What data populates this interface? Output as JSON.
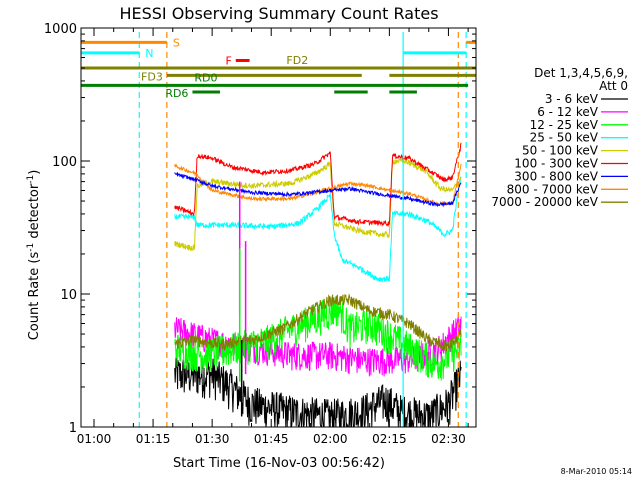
{
  "chart_data": {
    "type": "line",
    "title": "HESSI Observing Summary Count Rates",
    "xlabel": "Start Time (16-Nov-03 00:56:42)",
    "ylabel_main": "Count Rate (s",
    "ylabel_sup1": "-1",
    "ylabel_mid": " detector",
    "ylabel_sup2": "-1",
    "ylabel_end": ")",
    "x_ticks": [
      "01:00",
      "01:15",
      "01:30",
      "01:45",
      "02:00",
      "02:15",
      "02:30"
    ],
    "x_tick_minutes": [
      60,
      75,
      90,
      105,
      120,
      135,
      150
    ],
    "x_range_minutes": [
      56.7,
      157.0
    ],
    "y_scale": "log",
    "y_range": [
      1,
      1000
    ],
    "y_ticks": [
      "1",
      "10",
      "100",
      "1000"
    ],
    "y_tick_values": [
      1,
      10,
      100,
      1000
    ],
    "legend_header": [
      "Det 1,3,4,5,6,9,",
      "Att 0"
    ],
    "legend": [
      {
        "label": "3 - 6 keV",
        "color": "#000000"
      },
      {
        "label": "6 - 12 keV",
        "color": "#ff00ff"
      },
      {
        "label": "12 - 25 keV",
        "color": "#00ff00"
      },
      {
        "label": "25 - 50 keV",
        "color": "#00ffff"
      },
      {
        "label": "50 - 100 keV",
        "color": "#cccc00"
      },
      {
        "label": "100 - 300 keV",
        "color": "#ff0000"
      },
      {
        "label": "300 - 800 keV",
        "color": "#0000ff"
      },
      {
        "label": "800 - 7000 keV",
        "color": "#ff8800"
      },
      {
        "label": "7000 - 20000 keV",
        "color": "#808000"
      }
    ],
    "flags": [
      {
        "label": "S",
        "color": "#ff8800",
        "y": 780,
        "segments": [
          [
            56.7,
            78.5
          ],
          [
            154.5,
            157.0
          ]
        ]
      },
      {
        "label": "N",
        "color": "#00ffff",
        "y": 650,
        "segments": [
          [
            56.7,
            71.5
          ],
          [
            138.5,
            154.5
          ]
        ]
      },
      {
        "label": "F",
        "color": "#ff0000",
        "y": 570,
        "segments": [
          [
            96.0,
            99.5
          ]
        ]
      },
      {
        "label": "FD2",
        "color": "#808000",
        "y": 500,
        "segments": [
          [
            56.7,
            157.0
          ]
        ]
      },
      {
        "label": "FD3",
        "color": "#808000",
        "y": 440,
        "segments": [
          [
            78.5,
            128.0
          ],
          [
            135.0,
            157.0
          ]
        ]
      },
      {
        "label": "RD0",
        "color": "#007f00",
        "y": 370,
        "segments": [
          [
            56.7,
            155.0
          ]
        ]
      },
      {
        "label": "RD6",
        "color": "#007f00",
        "y": 330,
        "segments": [
          [
            85.0,
            92.0
          ],
          [
            121.0,
            129.5
          ],
          [
            135.0,
            142.0
          ]
        ]
      }
    ],
    "vlines": [
      {
        "x": 71.5,
        "color": "#00ffff",
        "style": "dashed"
      },
      {
        "x": 78.5,
        "color": "#ff8800",
        "style": "dashed"
      },
      {
        "x": 138.5,
        "color": "#00ffff",
        "style": "solid"
      },
      {
        "x": 152.5,
        "color": "#ff8800",
        "style": "dashed"
      },
      {
        "x": 154.5,
        "color": "#00ffff",
        "style": "dashed"
      }
    ],
    "data_start": 80.5,
    "data_end": 153.3,
    "series": [
      {
        "name": "3 - 6 keV",
        "color": "#000000",
        "noise": 0.35,
        "points": [
          [
            80.5,
            2.5
          ],
          [
            90,
            2.5
          ],
          [
            95,
            2.0
          ],
          [
            100,
            1.5
          ],
          [
            110,
            1.3
          ],
          [
            120,
            1.2
          ],
          [
            128,
            1.3
          ],
          [
            134,
            1.6
          ],
          [
            138,
            1.3
          ],
          [
            145,
            1.2
          ],
          [
            150,
            1.5
          ],
          [
            153.3,
            2.5
          ]
        ]
      },
      {
        "name": "6 - 12 keV",
        "color": "#ff00ff",
        "noise": 0.25,
        "points": [
          [
            80.5,
            5.5
          ],
          [
            90,
            4.5
          ],
          [
            100,
            4.0
          ],
          [
            110,
            3.5
          ],
          [
            120,
            3.5
          ],
          [
            128,
            3.2
          ],
          [
            135,
            3.2
          ],
          [
            142,
            3.3
          ],
          [
            148,
            4.0
          ],
          [
            153.3,
            6.0
          ]
        ]
      },
      {
        "name": "12 - 25 keV",
        "color": "#00ff00",
        "noise": 0.3,
        "points": [
          [
            80.5,
            4.0
          ],
          [
            88,
            3.5
          ],
          [
            96,
            4.0
          ],
          [
            104,
            4.5
          ],
          [
            110,
            5.5
          ],
          [
            118,
            7.0
          ],
          [
            122,
            8.0
          ],
          [
            125,
            5.5
          ],
          [
            130,
            6.0
          ],
          [
            135,
            5.0
          ],
          [
            140,
            4.0
          ],
          [
            147,
            3.0
          ],
          [
            153.3,
            4.0
          ]
        ]
      },
      {
        "name": "25 - 50 keV",
        "color": "#00ffff",
        "noise": 0.05,
        "points": [
          [
            80.5,
            38
          ],
          [
            85.5,
            38
          ],
          [
            86.2,
            33
          ],
          [
            95,
            33
          ],
          [
            105,
            32
          ],
          [
            112,
            34
          ],
          [
            116,
            42
          ],
          [
            120,
            55
          ],
          [
            121,
            28
          ],
          [
            123,
            18
          ],
          [
            127,
            16
          ],
          [
            132,
            13
          ],
          [
            135,
            13
          ],
          [
            135.8,
            40
          ],
          [
            140,
            40
          ],
          [
            145,
            35
          ],
          [
            149,
            28
          ],
          [
            151,
            30
          ],
          [
            152.5,
            60
          ],
          [
            153.3,
            80
          ]
        ]
      },
      {
        "name": "50 - 100 keV",
        "color": "#cccc00",
        "noise": 0.05,
        "points": [
          [
            80.5,
            24
          ],
          [
            85.5,
            22
          ],
          [
            86.2,
            65
          ],
          [
            90,
            70
          ],
          [
            100,
            65
          ],
          [
            110,
            68
          ],
          [
            116,
            80
          ],
          [
            120,
            95
          ],
          [
            121,
            34
          ],
          [
            127,
            30
          ],
          [
            133,
            28
          ],
          [
            135,
            28
          ],
          [
            135.8,
            100
          ],
          [
            139,
            100
          ],
          [
            144,
            85
          ],
          [
            148,
            62
          ],
          [
            151,
            60
          ],
          [
            153.3,
            75
          ]
        ]
      },
      {
        "name": "100 - 300 keV",
        "color": "#ff0000",
        "noise": 0.04,
        "points": [
          [
            80.5,
            45
          ],
          [
            85.5,
            40
          ],
          [
            86.2,
            110
          ],
          [
            90,
            105
          ],
          [
            95,
            90
          ],
          [
            103,
            82
          ],
          [
            110,
            85
          ],
          [
            116,
            95
          ],
          [
            120,
            115
          ],
          [
            121,
            38
          ],
          [
            127,
            35
          ],
          [
            135,
            34
          ],
          [
            135.8,
            110
          ],
          [
            140,
            105
          ],
          [
            145,
            85
          ],
          [
            149,
            72
          ],
          [
            151,
            75
          ],
          [
            153.3,
            135
          ]
        ]
      },
      {
        "name": "300 - 800 keV",
        "color": "#0000ff",
        "noise": 0.03,
        "points": [
          [
            80.5,
            80
          ],
          [
            86,
            72
          ],
          [
            90,
            65
          ],
          [
            100,
            58
          ],
          [
            110,
            56
          ],
          [
            120,
            60
          ],
          [
            125,
            62
          ],
          [
            130,
            58
          ],
          [
            135,
            55
          ],
          [
            140,
            52
          ],
          [
            147,
            47
          ],
          [
            151,
            48
          ],
          [
            153.3,
            70
          ]
        ]
      },
      {
        "name": "800 - 7000 keV",
        "color": "#ff8800",
        "noise": 0.03,
        "points": [
          [
            80.5,
            92
          ],
          [
            86,
            80
          ],
          [
            90,
            60
          ],
          [
            100,
            52
          ],
          [
            110,
            52
          ],
          [
            120,
            62
          ],
          [
            125,
            68
          ],
          [
            130,
            65
          ],
          [
            135,
            60
          ],
          [
            140,
            57
          ],
          [
            147,
            48
          ],
          [
            151,
            48
          ],
          [
            153.3,
            95
          ]
        ]
      },
      {
        "name": "7000 - 20000 keV",
        "color": "#808000",
        "noise": 0.1,
        "points": [
          [
            80.5,
            4.2
          ],
          [
            85,
            4.5
          ],
          [
            92,
            4.2
          ],
          [
            100,
            4.5
          ],
          [
            108,
            5.5
          ],
          [
            115,
            7.5
          ],
          [
            120,
            9.0
          ],
          [
            125,
            9.0
          ],
          [
            130,
            7.5
          ],
          [
            135,
            7.0
          ],
          [
            140,
            6.0
          ],
          [
            145,
            4.5
          ],
          [
            150,
            4.0
          ],
          [
            153.3,
            5.0
          ]
        ]
      }
    ],
    "spikes": [
      {
        "series": 1,
        "x": 97.0,
        "value": 70
      },
      {
        "series": 1,
        "x": 98.5,
        "value": 25
      },
      {
        "series": 2,
        "x": 97.0,
        "value": 22
      },
      {
        "series": 0,
        "x": 97.5,
        "value": 4.5
      }
    ],
    "footer_date": "8-Mar-2010 05:14"
  }
}
